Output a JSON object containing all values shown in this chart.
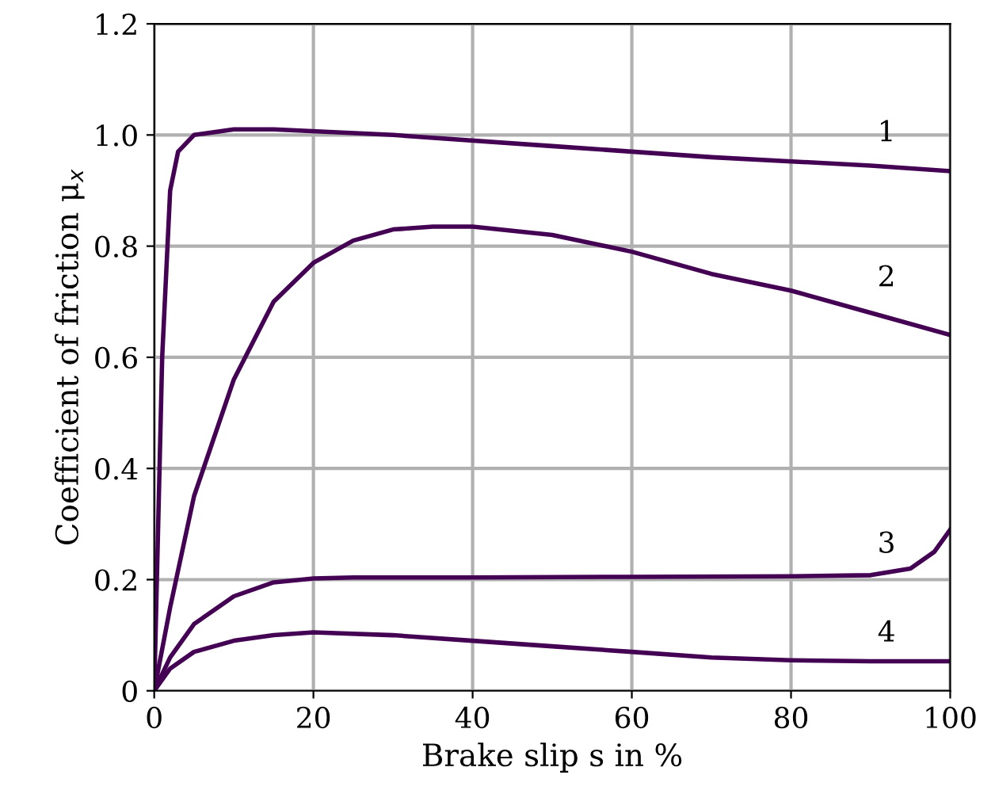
{
  "chart_data": {
    "type": "line",
    "xlabel": "Brake slip s in %",
    "ylabel": "Coefficient of friction μ$_{x}$",
    "xlim": [
      0,
      100
    ],
    "ylim": [
      0,
      1.2
    ],
    "xticks": [
      0,
      20,
      40,
      60,
      80,
      100
    ],
    "yticks": [
      0,
      0.2,
      0.4,
      0.6,
      0.8,
      {
        "value": 1,
        "label": "1.0"
      },
      1.2
    ],
    "grid": true,
    "legend": false,
    "marker": "none",
    "line_style": "solid",
    "series": [
      {
        "name": "1",
        "color": "#440154",
        "x": [
          0,
          1,
          2,
          3,
          5,
          10,
          15,
          30,
          50,
          70,
          90,
          100
        ],
        "values": [
          0,
          0.6,
          0.9,
          0.97,
          1.0,
          1.01,
          1.01,
          1.0,
          0.98,
          0.96,
          0.945,
          0.935
        ]
      },
      {
        "name": "2",
        "color": "#440154",
        "x": [
          0,
          2,
          5,
          10,
          15,
          20,
          25,
          30,
          35,
          40,
          50,
          60,
          70,
          80,
          90,
          100
        ],
        "values": [
          0,
          0.15,
          0.35,
          0.56,
          0.7,
          0.77,
          0.81,
          0.83,
          0.835,
          0.835,
          0.82,
          0.79,
          0.75,
          0.72,
          0.68,
          0.64
        ]
      },
      {
        "name": "3",
        "color": "#440154",
        "x": [
          0,
          2,
          5,
          10,
          15,
          20,
          25,
          40,
          60,
          80,
          90,
          95,
          98,
          100
        ],
        "values": [
          0,
          0.06,
          0.12,
          0.17,
          0.195,
          0.202,
          0.204,
          0.204,
          0.205,
          0.206,
          0.208,
          0.22,
          0.25,
          0.29
        ]
      },
      {
        "name": "4",
        "color": "#440154",
        "x": [
          0,
          2,
          5,
          10,
          15,
          20,
          30,
          40,
          50,
          60,
          70,
          80,
          90,
          100
        ],
        "values": [
          0,
          0.04,
          0.07,
          0.09,
          0.1,
          0.105,
          0.1,
          0.09,
          0.08,
          0.07,
          0.06,
          0.055,
          0.053,
          0.053
        ]
      }
    ]
  }
}
